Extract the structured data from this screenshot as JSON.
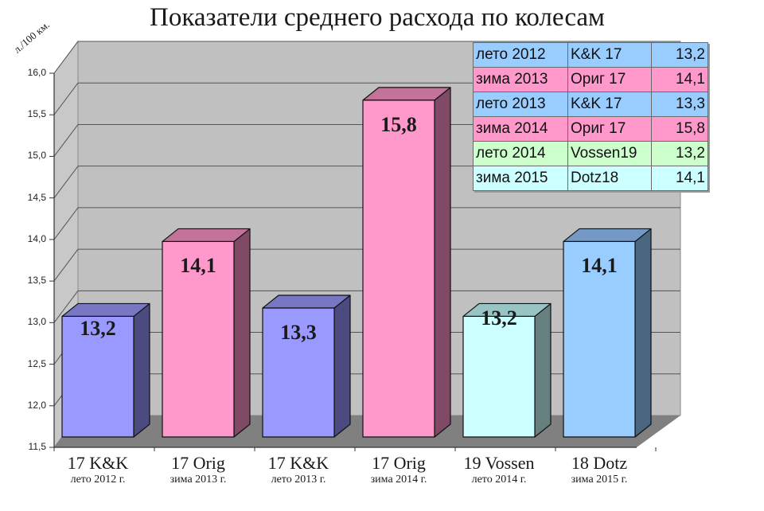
{
  "title": "Показатели среднего расхода по колесам",
  "y_unit_label": "л./100 км.",
  "colors": {
    "wall": "#c0c0c0",
    "floor": "#808080",
    "summer_kk": {
      "front": "#9999ff",
      "top": "#7777c4",
      "side": "#4b4b80"
    },
    "winter_orig": {
      "front": "#ff99cc",
      "top": "#c37399",
      "side": "#804a66"
    },
    "summer_vossen": {
      "front": "#ccffff",
      "top": "#99c4c4",
      "side": "#668080"
    },
    "winter_dotz": {
      "front": "#99ccff",
      "top": "#7399c4",
      "side": "#4a6680"
    }
  },
  "legend": [
    {
      "period": "лето 2012",
      "wheel": "K&K 17",
      "value": "13,2",
      "color": "#99ccff"
    },
    {
      "period": "зима 2013",
      "wheel": "Ориг 17",
      "value": "14,1",
      "color": "#ff99cc"
    },
    {
      "period": "лето 2013",
      "wheel": "K&K 17",
      "value": "13,3",
      "color": "#99ccff"
    },
    {
      "period": "зима 2014",
      "wheel": "Ориг 17",
      "value": "15,8",
      "color": "#ff99cc"
    },
    {
      "period": "лето 2014",
      "wheel": "Vossen19",
      "value": "13,2",
      "color": "#ccffcc"
    },
    {
      "period": "зима 2015",
      "wheel": "Dotz18",
      "value": "14,1",
      "color": "#ccffff"
    }
  ],
  "categories": [
    {
      "main": "17 K&K",
      "sub": "лето 2012 г.",
      "value_label": "13,2"
    },
    {
      "main": "17 Orig",
      "sub": "зима 2013 г.",
      "value_label": "14,1"
    },
    {
      "main": "17 K&K",
      "sub": "лето 2013 г.",
      "value_label": "13,3"
    },
    {
      "main": "17 Orig",
      "sub": "зима 2014 г.",
      "value_label": "15,8"
    },
    {
      "main": "19 Vossen",
      "sub": "лето 2014 г.",
      "value_label": "13,2"
    },
    {
      "main": "18 Dotz",
      "sub": "зима 2015 г.",
      "value_label": "14,1"
    }
  ],
  "y_ticks": [
    "16,0",
    "15,5",
    "15,0",
    "14,5",
    "14,0",
    "13,5",
    "13,0",
    "12,5",
    "12,0",
    "11,5"
  ],
  "chart_data": {
    "type": "bar",
    "title": "Показатели среднего расхода по колесам",
    "xlabel": "",
    "ylabel": "л./100 км.",
    "categories": [
      "17 K&K лето 2012 г.",
      "17 Orig зима 2013 г.",
      "17 K&K лето 2013 г.",
      "17 Orig зима 2014 г.",
      "19 Vossen лето 2014 г.",
      "18 Dotz зима 2015 г."
    ],
    "values": [
      13.2,
      14.1,
      13.3,
      15.8,
      13.2,
      14.1
    ],
    "ylim": [
      11.5,
      16.0
    ],
    "y_ticks": [
      11.5,
      12.0,
      12.5,
      13.0,
      13.5,
      14.0,
      14.5,
      15.0,
      15.5,
      16.0
    ],
    "grid": true,
    "style": "3d-column",
    "data_labels": [
      "13,2",
      "14,1",
      "13,3",
      "15,8",
      "13,2",
      "14,1"
    ],
    "legend_position": "top-right (data table)"
  }
}
